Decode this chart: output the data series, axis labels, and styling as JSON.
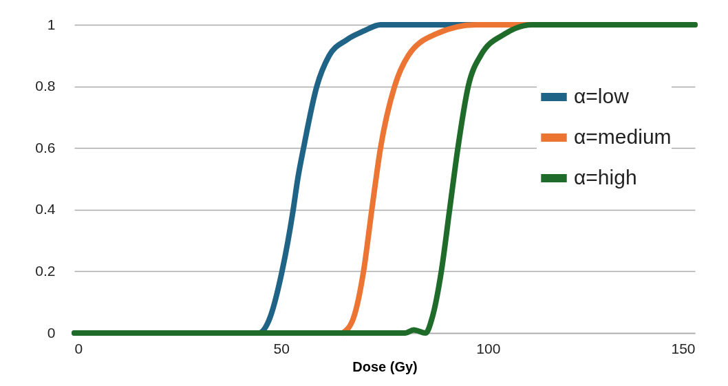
{
  "chart_data": {
    "type": "line",
    "xlabel": "Dose (Gy)",
    "xlim": [
      0,
      150
    ],
    "xticks": [
      0,
      50,
      100,
      150
    ],
    "ylim": [
      0,
      1
    ],
    "yticks": [
      0,
      0.2,
      0.4,
      0.6,
      0.8,
      1
    ],
    "grid": "y",
    "legend": "right",
    "line_style": "solid",
    "marker": "none",
    "series": [
      {
        "name": "α=low",
        "color": "#1f6386",
        "x": [
          0,
          44.6,
          47,
          50.2,
          52.9,
          54,
          55.4,
          58.6,
          61.6,
          65.7,
          70,
          74,
          150
        ],
        "values": [
          0,
          0,
          0.04,
          0.2,
          0.4,
          0.5,
          0.6,
          0.8,
          0.9,
          0.95,
          0.98,
          1,
          1
        ]
      },
      {
        "name": "α=medium",
        "color": "#ed7533",
        "x": [
          64.9,
          67.5,
          69.9,
          71.9,
          74,
          77.4,
          80.7,
          87.4,
          97,
          150
        ],
        "values": [
          0,
          0.05,
          0.2,
          0.4,
          0.6,
          0.8,
          0.9,
          0.97,
          1,
          1
        ]
      },
      {
        "name": "α=high",
        "color": "#1e6b2a",
        "x": [
          0,
          80,
          82,
          84.9,
          86.5,
          88.7,
          90.7,
          92.7,
          95.2,
          98.2,
          104,
          110.6,
          150
        ],
        "values": [
          0,
          0,
          0.01,
          0,
          0.05,
          0.2,
          0.4,
          0.6,
          0.8,
          0.9,
          0.97,
          1,
          1
        ]
      }
    ]
  }
}
